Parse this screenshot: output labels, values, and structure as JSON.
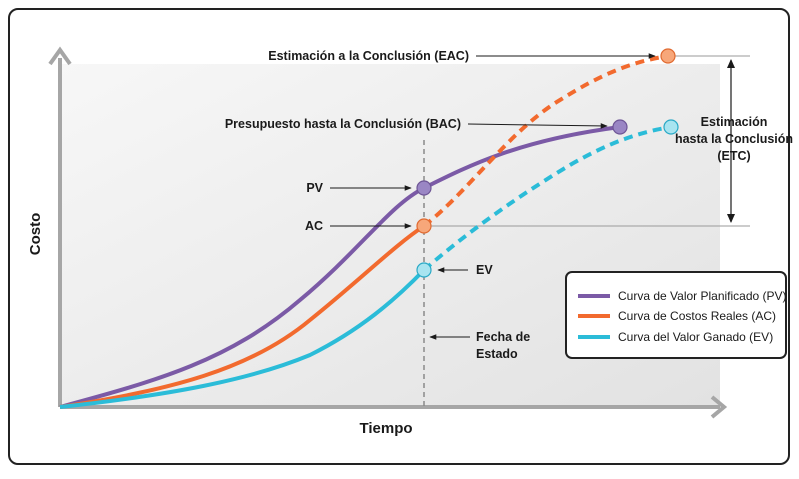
{
  "axes": {
    "x_label": "Tiempo",
    "y_label": "Costo"
  },
  "annotations": {
    "eac": "Estimación a la Conclusión (EAC)",
    "bac": "Presupuesto hasta la Conclusión (BAC)",
    "pv": "PV",
    "ac": "AC",
    "ev": "EV",
    "status_date": [
      "Fecha de",
      "Estado"
    ],
    "etc": [
      "Estimación",
      "hasta la Conclusión",
      "(ETC)"
    ]
  },
  "legend": {
    "items": [
      {
        "label": "Curva de Valor Planificado (PV)",
        "color": "#7b5aa6"
      },
      {
        "label": "Curva de Costos Reales (AC)",
        "color": "#f26a2e"
      },
      {
        "label": "Curva del Valor Ganado (EV)",
        "color": "#2bbcd8"
      }
    ]
  },
  "colors": {
    "pv": "#7b5aa6",
    "ac": "#f26a2e",
    "ev": "#2bbcd8",
    "axis": "#a6a6a6",
    "plot_bg": "#ececec",
    "marker_pv": "#9a86c4",
    "marker_ac": "#f7a77a",
    "marker_ev": "#a8e4f0"
  },
  "icons": {
    "arrow": "arrow-right-icon",
    "marker": "circle-marker-icon"
  }
}
